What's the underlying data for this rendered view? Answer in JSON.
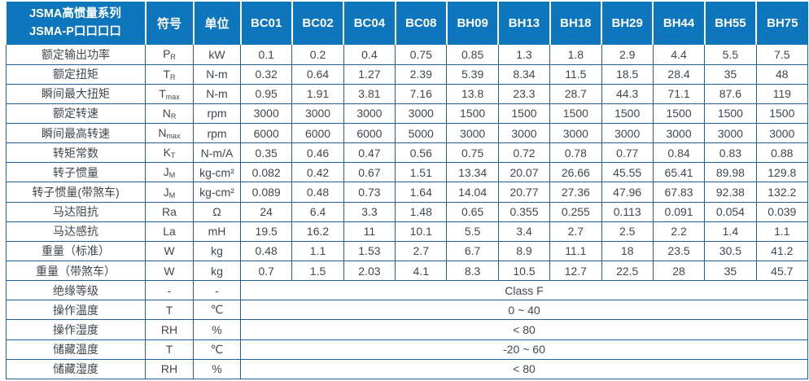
{
  "colors": {
    "header_bg": "#0e76bc",
    "border": "#1f5f9e",
    "text": "#3f474f",
    "header_text": "#ffffff"
  },
  "header": {
    "title_line1": "JSMA高惯量系列",
    "title_line2": "JSMA-P口口口口",
    "symbol_col": "符号",
    "unit_col": "单位",
    "models": [
      "BC01",
      "BC02",
      "BC04",
      "BC08",
      "BH09",
      "BH13",
      "BH18",
      "BH29",
      "BH44",
      "BH55",
      "BH75"
    ]
  },
  "rows": [
    {
      "label": "额定输出功率",
      "symbol": "P",
      "sub": "R",
      "unit": "kW",
      "values": [
        "0.1",
        "0.2",
        "0.4",
        "0.75",
        "0.85",
        "1.3",
        "1.8",
        "2.9",
        "4.4",
        "5.5",
        "7.5"
      ]
    },
    {
      "label": "额定扭矩",
      "symbol": "T",
      "sub": "R",
      "unit": "N-m",
      "values": [
        "0.32",
        "0.64",
        "1.27",
        "2.39",
        "5.39",
        "8.34",
        "11.5",
        "18.5",
        "28.4",
        "35",
        "48"
      ]
    },
    {
      "label": "瞬间最大扭矩",
      "symbol": "T",
      "sub": "max",
      "unit": "N-m",
      "values": [
        "0.95",
        "1.91",
        "3.81",
        "7.16",
        "13.8",
        "23.3",
        "28.7",
        "44.3",
        "71.1",
        "87.6",
        "119"
      ]
    },
    {
      "label": "额定转速",
      "symbol": "N",
      "sub": "R",
      "unit": "rpm",
      "values": [
        "3000",
        "3000",
        "3000",
        "3000",
        "1500",
        "1500",
        "1500",
        "1500",
        "1500",
        "1500",
        "1500"
      ]
    },
    {
      "label": "瞬间最高转速",
      "symbol": "N",
      "sub": "max",
      "unit": "rpm",
      "values": [
        "6000",
        "6000",
        "6000",
        "5000",
        "3000",
        "3000",
        "3000",
        "3000",
        "3000",
        "3000",
        "3000"
      ]
    },
    {
      "label": "转矩常数",
      "symbol": "K",
      "sub": "T",
      "unit": "N-m/A",
      "values": [
        "0.35",
        "0.46",
        "0.47",
        "0.56",
        "0.75",
        "0.72",
        "0.78",
        "0.77",
        "0.84",
        "0.83",
        "0.88"
      ]
    },
    {
      "label": "转子惯量",
      "symbol": "J",
      "sub": "M",
      "unit": "kg-cm²",
      "values": [
        "0.082",
        "0.42",
        "0.67",
        "1.51",
        "13.34",
        "20.07",
        "26.66",
        "45.55",
        "65.41",
        "89.98",
        "129.8"
      ]
    },
    {
      "label": "转子惯量(带煞车)",
      "symbol": "J",
      "sub": "M",
      "unit": "kg-cm²",
      "values": [
        "0.089",
        "0.48",
        "0.73",
        "1.64",
        "14.04",
        "20.77",
        "27.36",
        "47.96",
        "67.83",
        "92.38",
        "132.2"
      ]
    },
    {
      "label": "马达阻抗",
      "symbol": "Ra",
      "sub": "",
      "unit": "Ω",
      "values": [
        "24",
        "6.4",
        "3.3",
        "1.48",
        "0.65",
        "0.355",
        "0.255",
        "0.113",
        "0.091",
        "0.054",
        "0.039"
      ]
    },
    {
      "label": "马达感抗",
      "symbol": "La",
      "sub": "",
      "unit": "mH",
      "values": [
        "19.5",
        "16.2",
        "11",
        "10.1",
        "5.5",
        "3.4",
        "2.7",
        "2.5",
        "2.2",
        "1.4",
        "1.1"
      ]
    },
    {
      "label": "重量（标准）",
      "symbol": "W",
      "sub": "",
      "unit": "kg",
      "values": [
        "0.48",
        "1.1",
        "1.53",
        "2.7",
        "6.7",
        "8.9",
        "11.1",
        "18",
        "23.5",
        "30.5",
        "41.2"
      ]
    },
    {
      "label": "重量（带煞车）",
      "symbol": "W",
      "sub": "",
      "unit": "kg",
      "values": [
        "0.7",
        "1.5",
        "2.03",
        "4.1",
        "8.3",
        "10.5",
        "12.7",
        "22.5",
        "28",
        "35",
        "45.7"
      ]
    }
  ],
  "merged_rows": [
    {
      "label": "绝缘等级",
      "symbol": "-",
      "unit": "-",
      "value": "Class F"
    },
    {
      "label": "操作温度",
      "symbol": "T",
      "unit": "℃",
      "value": "0 ~ 40"
    },
    {
      "label": "操作湿度",
      "symbol": "RH",
      "unit": "%",
      "value": "< 80"
    },
    {
      "label": "储藏温度",
      "symbol": "T",
      "unit": "℃",
      "value": "-20 ~ 60"
    },
    {
      "label": "储藏湿度",
      "symbol": "RH",
      "unit": "%",
      "value": "< 80"
    }
  ]
}
